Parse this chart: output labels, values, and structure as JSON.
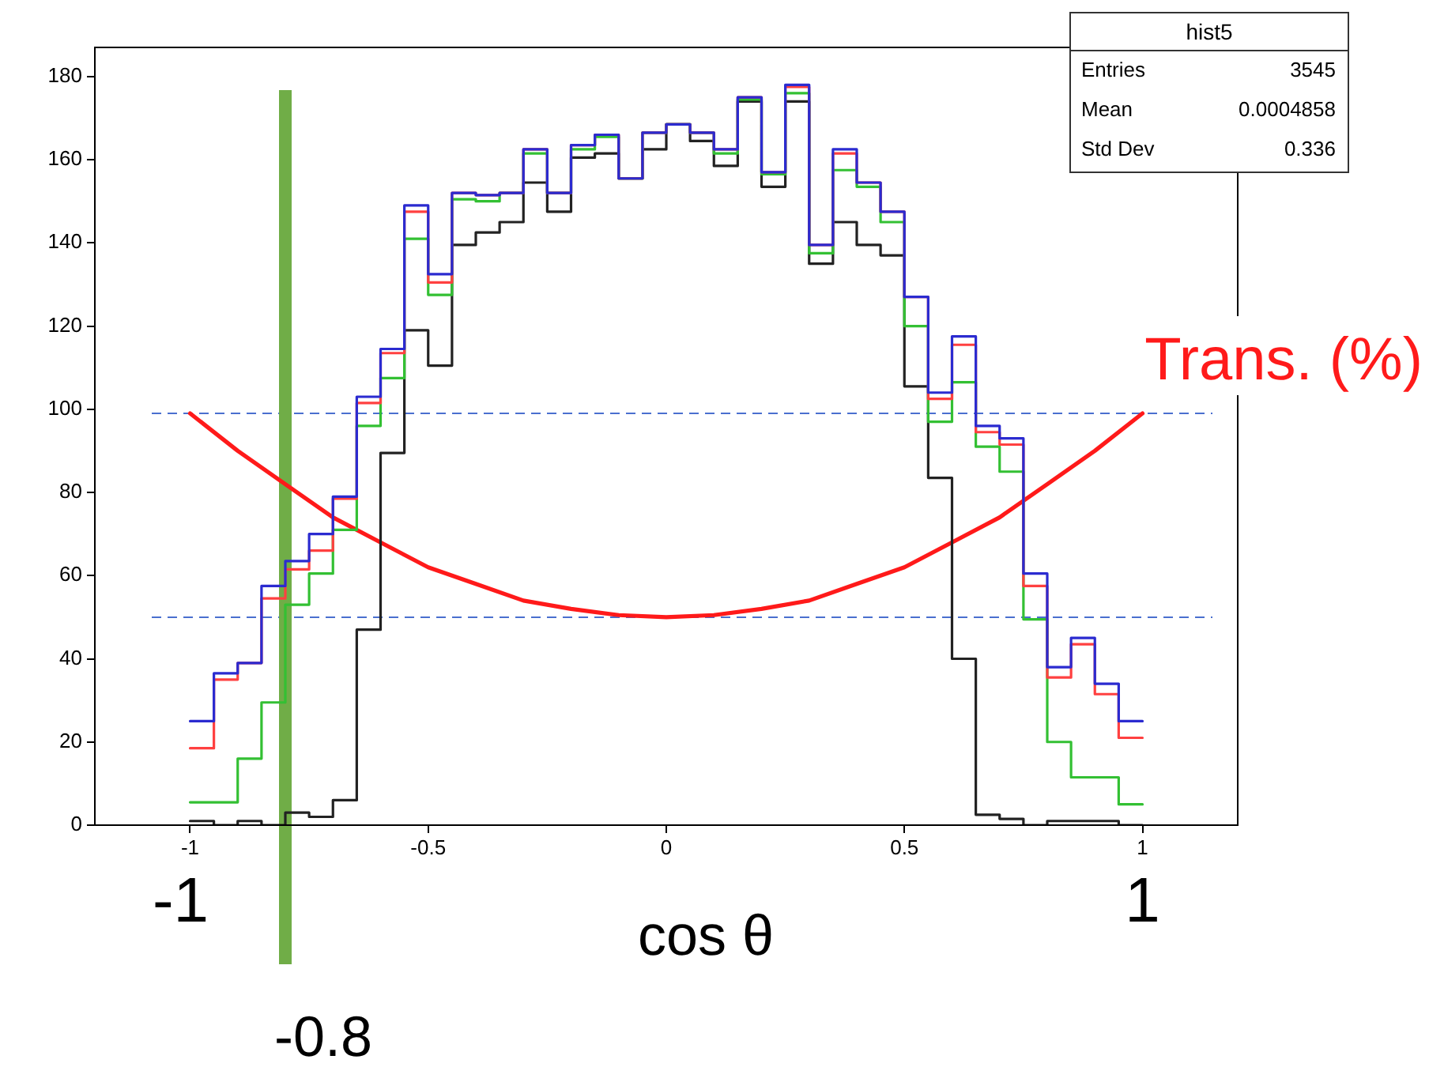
{
  "chart_data": {
    "type": "histogram",
    "title": "hist5",
    "xlabel": "cos θ",
    "bins": [
      -1,
      -0.95,
      -0.9,
      -0.85,
      -0.8,
      -0.75,
      -0.7,
      -0.65,
      -0.6,
      -0.55,
      -0.5,
      -0.45,
      -0.4,
      -0.35,
      -0.3,
      -0.25,
      -0.2,
      -0.15,
      -0.1,
      -0.05,
      0,
      0.05,
      0.1,
      0.15,
      0.2,
      0.25,
      0.3,
      0.35,
      0.4,
      0.45,
      0.5,
      0.55,
      0.6,
      0.65,
      0.7,
      0.75,
      0.8,
      0.85,
      0.9,
      0.95,
      1
    ],
    "series": [
      {
        "color": "#2b2bd0",
        "values": [
          25,
          36.5,
          39,
          57.5,
          63.5,
          70,
          79,
          103,
          114.5,
          149,
          132.5,
          152,
          151.5,
          152,
          162.5,
          152,
          163.5,
          166,
          155.5,
          166.5,
          168.5,
          166.5,
          162.5,
          175,
          157,
          178,
          139.5,
          162.5,
          154.5,
          147.5,
          127,
          104,
          117.5,
          96,
          93,
          60.5,
          38,
          45,
          34,
          25
        ]
      },
      {
        "color": "#ff4040",
        "values": [
          18.5,
          35,
          39,
          54.5,
          61.5,
          66,
          78.5,
          101.5,
          113.5,
          147.5,
          130.5,
          152,
          151.5,
          152,
          162.5,
          152,
          163.5,
          166,
          155.5,
          166.5,
          168.5,
          166.5,
          162.5,
          175,
          157,
          177.5,
          139.5,
          161.5,
          154.5,
          147.5,
          127,
          102.5,
          115.5,
          94.5,
          91.5,
          57.5,
          35.5,
          43.5,
          31.5,
          21
        ]
      },
      {
        "color": "#33c033",
        "values": [
          5.5,
          5.5,
          16,
          29.5,
          53,
          60.5,
          71,
          96,
          107.5,
          141,
          127.5,
          150.5,
          150,
          152,
          161.5,
          152,
          162.5,
          165.5,
          155.5,
          166.5,
          168.5,
          166.5,
          161.5,
          174.5,
          156.5,
          176,
          137.5,
          157.5,
          153.5,
          145,
          120,
          97,
          106.5,
          91,
          85,
          49.5,
          20,
          11.5,
          11.5,
          5
        ]
      },
      {
        "color": "#222222",
        "values": [
          1,
          0,
          1,
          0,
          3,
          2,
          6,
          47,
          89.5,
          119,
          110.5,
          139.5,
          142.5,
          145,
          154.5,
          147.5,
          160.5,
          161.5,
          155.5,
          162.5,
          168.5,
          164.5,
          158.5,
          174,
          153.5,
          174,
          135,
          145,
          139.5,
          137,
          105.5,
          83.5,
          40,
          2.5,
          1.5,
          0,
          1,
          1,
          1,
          0
        ]
      },
      {
        "type": "line",
        "name": "Trans. (%)",
        "color": "#ff1a1a",
        "x": [
          -1,
          -0.9,
          -0.8,
          -0.7,
          -0.6,
          -0.5,
          -0.4,
          -0.3,
          -0.2,
          -0.1,
          0,
          0.1,
          0.2,
          0.3,
          0.4,
          0.5,
          0.6,
          0.7,
          0.8,
          0.9,
          1
        ],
        "values": [
          99,
          90,
          82,
          74,
          68,
          62,
          58,
          54,
          52,
          50.5,
          50,
          50.5,
          52,
          54,
          58,
          62,
          68,
          74,
          82,
          90,
          99
        ]
      }
    ],
    "xlim": [
      -1.2,
      1.2
    ],
    "xticks": [
      -1,
      -0.5,
      0,
      0.5,
      1
    ],
    "ylim": [
      0,
      187
    ],
    "yticks": [
      0,
      20,
      40,
      60,
      80,
      100,
      120,
      140,
      160,
      180
    ],
    "ref_lines": [
      {
        "axis": "y",
        "value": 99,
        "color": "#4a6fcf",
        "line_style": "dashed"
      },
      {
        "axis": "y",
        "value": 50,
        "color": "#4a6fcf",
        "line_style": "dashed"
      },
      {
        "axis": "x",
        "value": -0.8,
        "label": "-0.8",
        "color": "#70ad47",
        "line_style": "solid"
      }
    ],
    "annotations": [
      "Entries",
      "3545",
      "Mean",
      "0.0004858",
      "Std Dev",
      "0.336",
      "-1",
      "1"
    ],
    "grid": false,
    "legend": false,
    "marker": "none",
    "line_style": "solid"
  }
}
